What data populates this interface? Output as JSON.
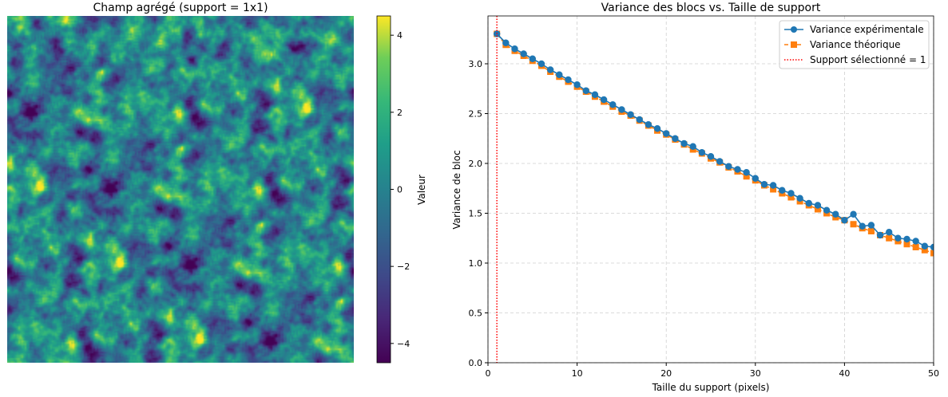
{
  "chart_data": [
    {
      "type": "heatmap",
      "title": "Champ agrégé (support = 1x1)",
      "colorbar": {
        "label": "Valeur",
        "colormap": "viridis",
        "range": [
          -4.5,
          4.5
        ],
        "ticks": [
          -4,
          -2,
          0,
          2,
          4
        ],
        "tick_labels": [
          "−4",
          "−2",
          "0",
          "2",
          "4"
        ]
      }
    },
    {
      "type": "line",
      "title": "Variance des blocs vs. Taille de support",
      "xlabel": "Taille du support (pixels)",
      "ylabel": "Variance de bloc",
      "xlim": [
        0,
        50
      ],
      "ylim": [
        0,
        3.48
      ],
      "xticks": [
        0,
        10,
        20,
        30,
        40,
        50
      ],
      "xtick_labels": [
        "0",
        "10",
        "20",
        "30",
        "40",
        "50"
      ],
      "yticks": [
        0,
        0.5,
        1,
        1.5,
        2,
        2.5,
        3
      ],
      "ytick_labels": [
        "0.0",
        "0.5",
        "1.0",
        "1.5",
        "2.0",
        "2.5",
        "3.0"
      ],
      "grid": true,
      "legend_placement": "top-right",
      "x": [
        1,
        2,
        3,
        4,
        5,
        6,
        7,
        8,
        9,
        10,
        11,
        12,
        13,
        14,
        15,
        16,
        17,
        18,
        19,
        20,
        21,
        22,
        23,
        24,
        25,
        26,
        27,
        28,
        29,
        30,
        31,
        32,
        33,
        34,
        35,
        36,
        37,
        38,
        39,
        40,
        41,
        42,
        43,
        44,
        45,
        46,
        47,
        48,
        49,
        50
      ],
      "series": [
        {
          "name": "Variance expérimentale",
          "color": "#1f77b4",
          "marker": "circle",
          "linestyle": "solid",
          "values": [
            3.3,
            3.21,
            3.15,
            3.1,
            3.05,
            3.0,
            2.94,
            2.89,
            2.84,
            2.79,
            2.73,
            2.69,
            2.64,
            2.59,
            2.54,
            2.49,
            2.44,
            2.39,
            2.35,
            2.3,
            2.25,
            2.2,
            2.17,
            2.11,
            2.07,
            2.02,
            1.97,
            1.94,
            1.91,
            1.85,
            1.79,
            1.78,
            1.73,
            1.7,
            1.65,
            1.6,
            1.58,
            1.53,
            1.49,
            1.43,
            1.49,
            1.37,
            1.38,
            1.28,
            1.31,
            1.25,
            1.24,
            1.22,
            1.17,
            1.16
          ]
        },
        {
          "name": "Variance théorique",
          "color": "#ff7f0e",
          "marker": "square",
          "linestyle": "dashed",
          "values": [
            3.3,
            3.19,
            3.13,
            3.08,
            3.03,
            2.98,
            2.92,
            2.87,
            2.82,
            2.77,
            2.72,
            2.67,
            2.62,
            2.57,
            2.52,
            2.48,
            2.43,
            2.38,
            2.33,
            2.29,
            2.24,
            2.19,
            2.14,
            2.1,
            2.05,
            2.01,
            1.96,
            1.92,
            1.87,
            1.83,
            1.78,
            1.74,
            1.7,
            1.66,
            1.62,
            1.58,
            1.54,
            1.5,
            1.46,
            1.43,
            1.39,
            1.35,
            1.32,
            1.28,
            1.25,
            1.22,
            1.19,
            1.16,
            1.13,
            1.1
          ]
        }
      ],
      "vline": {
        "name": "Support sélectionné = 1",
        "x": 1,
        "color": "#ff0000",
        "linestyle": "dotted"
      }
    }
  ]
}
